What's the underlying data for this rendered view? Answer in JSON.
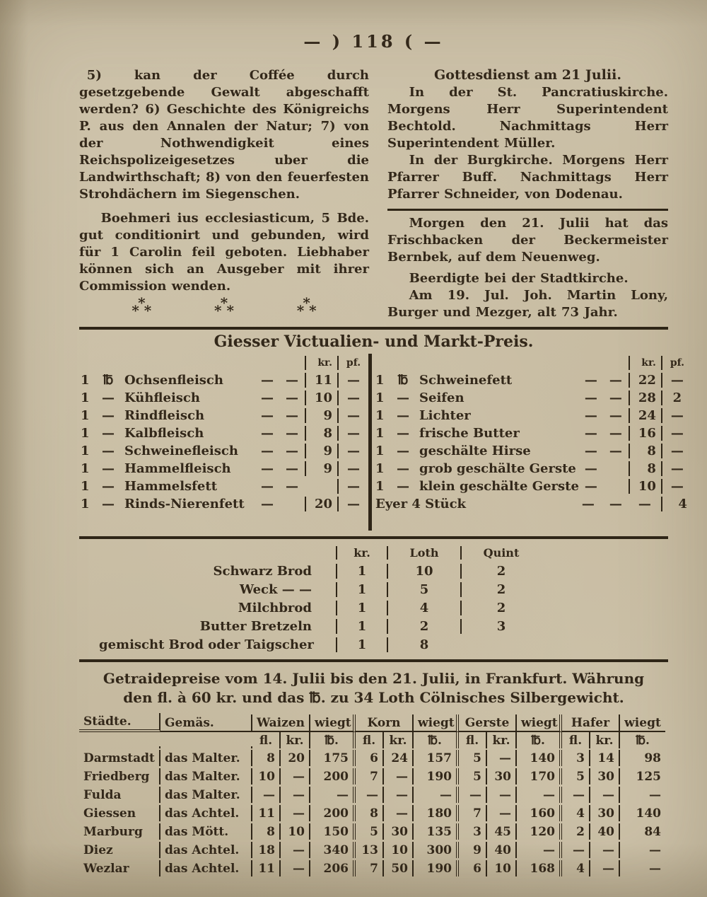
{
  "page": {
    "header": "— ) 118 ( —"
  },
  "left_column": {
    "para1": "5) kan der Coffée durch gesetzgebende Gewalt abgeschafft werden? 6) Geschichte des Königreichs P. aus den Annalen der Natur; 7) von der Nothwendigkeit eines Reichspolizeigesetzes uber die Landwirthschaft; 8) von den feuerfesten Strohdächern im Siegenschen.",
    "para2": "Boehmeri ius ecclesiasticum, 5 Bde. gut conditionirt und gebunden, wird für 1 Carolin feil geboten. Liebhaber können sich an Ausgeber mit ihrer Commission wenden.",
    "asterism_top": "*",
    "asterism_bottom": "* *"
  },
  "right_column": {
    "heading": "Gottesdienst am 21 Julii.",
    "para1": "In der St. Pancratiuskirche. Morgens Herr Superintendent Bechtold. Nachmittags Herr Superintendent Müller.",
    "para2": "In der Burgkirche. Morgens Herr Pfarrer Buff. Nachmittags Herr Pfarrer Schneider, von Dodenau.",
    "para3": "Morgen den 21. Julii hat das Frischbacken der Beckermeister Bernbek, auf dem Neuenweg.",
    "subheading": "Beerdigte bei der Stadtkirche.",
    "para4": "Am 19. Jul. Joh. Martin Lony, Burger und Mezger, alt 73 Jahr."
  },
  "market_table": {
    "title": "Giesser Victualien- und Markt-Preis.",
    "col_headers": [
      "kr.",
      "pf."
    ],
    "left_rows": [
      [
        "1",
        "℔",
        "Ochsenfleisch",
        "—",
        "—",
        "11",
        "—"
      ],
      [
        "1",
        "—",
        "Kühfleisch",
        "—",
        "—",
        "10",
        "—"
      ],
      [
        "1",
        "—",
        "Rindfleisch",
        "—",
        "—",
        "9",
        "—"
      ],
      [
        "1",
        "—",
        "Kalbfleisch",
        "—",
        "—",
        "8",
        "—"
      ],
      [
        "1",
        "—",
        "Schweinefleisch",
        "—",
        "—",
        "9",
        "—"
      ],
      [
        "1",
        "—",
        "Hammelfleisch",
        "—",
        "—",
        "9",
        "—"
      ],
      [
        "1",
        "—",
        "Hammelsfett",
        "—",
        "—",
        "",
        "—"
      ],
      [
        "1",
        "—",
        "Rinds-Nierenfett",
        "—",
        "",
        "20",
        "—"
      ]
    ],
    "right_rows": [
      [
        "1",
        "℔",
        "Schweinefett",
        "—",
        "—",
        "22",
        "—"
      ],
      [
        "1",
        "—",
        "Seifen",
        "—",
        "—",
        "28",
        "2"
      ],
      [
        "1",
        "—",
        "Lichter",
        "—",
        "—",
        "24",
        "—"
      ],
      [
        "1",
        "—",
        "frische Butter",
        "—",
        "—",
        "16",
        "—"
      ],
      [
        "1",
        "—",
        "geschälte Hirse",
        "—",
        "—",
        "8",
        "—"
      ],
      [
        "1",
        "—",
        "grob geschälte Gerste",
        "—",
        "",
        "8",
        "—"
      ],
      [
        "1",
        "—",
        "klein geschälte Gerste",
        "—",
        "",
        "10",
        "—"
      ],
      [
        "Eyer 4 Stück",
        "—",
        "—",
        "—",
        "4",
        ""
      ]
    ]
  },
  "bread_table": {
    "headers": [
      "kr.",
      "Loth",
      "Quint"
    ],
    "rows": [
      {
        "label": "Schwarz Brod",
        "kr": "1",
        "loth": "10",
        "quint": "2"
      },
      {
        "label": "Weck  —  —",
        "kr": "1",
        "loth": "5",
        "quint": "2"
      },
      {
        "label": "Milchbrod",
        "kr": "1",
        "loth": "4",
        "quint": "2"
      },
      {
        "label": "Butter Bretzeln",
        "kr": "1",
        "loth": "2",
        "quint": "3"
      },
      {
        "label": "gemischt Brod oder Taigscher",
        "kr": "1",
        "loth": "8",
        "quint": ""
      }
    ]
  },
  "grain_section": {
    "heading_line1": "Getraidepreise vom 14. Julii bis den 21. Julii, in Frankfurt. Währung",
    "heading_line2": "den fl. à 60 kr. und das ℔. zu 34 Loth Cölnisches Silbergewicht.",
    "table": {
      "city_header": "Städte.",
      "measure_header": "Gemäs.",
      "groups": [
        "Waizen",
        "Korn",
        "Gerste",
        "Hafer"
      ],
      "weight_header": "wiegt",
      "sub_headers": [
        "fl.",
        "kr.",
        "℔."
      ],
      "rows": [
        {
          "city": "Darmstadt",
          "measure": "das Malter.",
          "values": [
            "8",
            "20",
            "175",
            "6",
            "24",
            "157",
            "5",
            "—",
            "140",
            "3",
            "14",
            "98"
          ]
        },
        {
          "city": "Friedberg",
          "measure": "das Malter.",
          "values": [
            "10",
            "—",
            "200",
            "7",
            "—",
            "190",
            "5",
            "30",
            "170",
            "5",
            "30",
            "125"
          ]
        },
        {
          "city": "Fulda",
          "measure": "das Malter.",
          "values": [
            "—",
            "—",
            "—",
            "—",
            "—",
            "—",
            "—",
            "—",
            "—",
            "—",
            "—",
            "—"
          ]
        },
        {
          "city": "Giessen",
          "measure": "das Achtel.",
          "values": [
            "11",
            "—",
            "200",
            "8",
            "—",
            "180",
            "7",
            "—",
            "160",
            "4",
            "30",
            "140"
          ]
        },
        {
          "city": "Marburg",
          "measure": "das Mött.",
          "values": [
            "8",
            "10",
            "150",
            "5",
            "30",
            "135",
            "3",
            "45",
            "120",
            "2",
            "40",
            "84"
          ]
        },
        {
          "city": "Diez",
          "measure": "das Achtel.",
          "values": [
            "18",
            "—",
            "340",
            "13",
            "10",
            "300",
            "9",
            "40",
            "—",
            "—",
            "—",
            "—"
          ]
        },
        {
          "city": "Wezlar",
          "measure": "das Achtel.",
          "values": [
            "11",
            "—",
            "206",
            "7",
            "50",
            "190",
            "6",
            "10",
            "168",
            "4",
            "—",
            "—"
          ]
        }
      ]
    }
  }
}
